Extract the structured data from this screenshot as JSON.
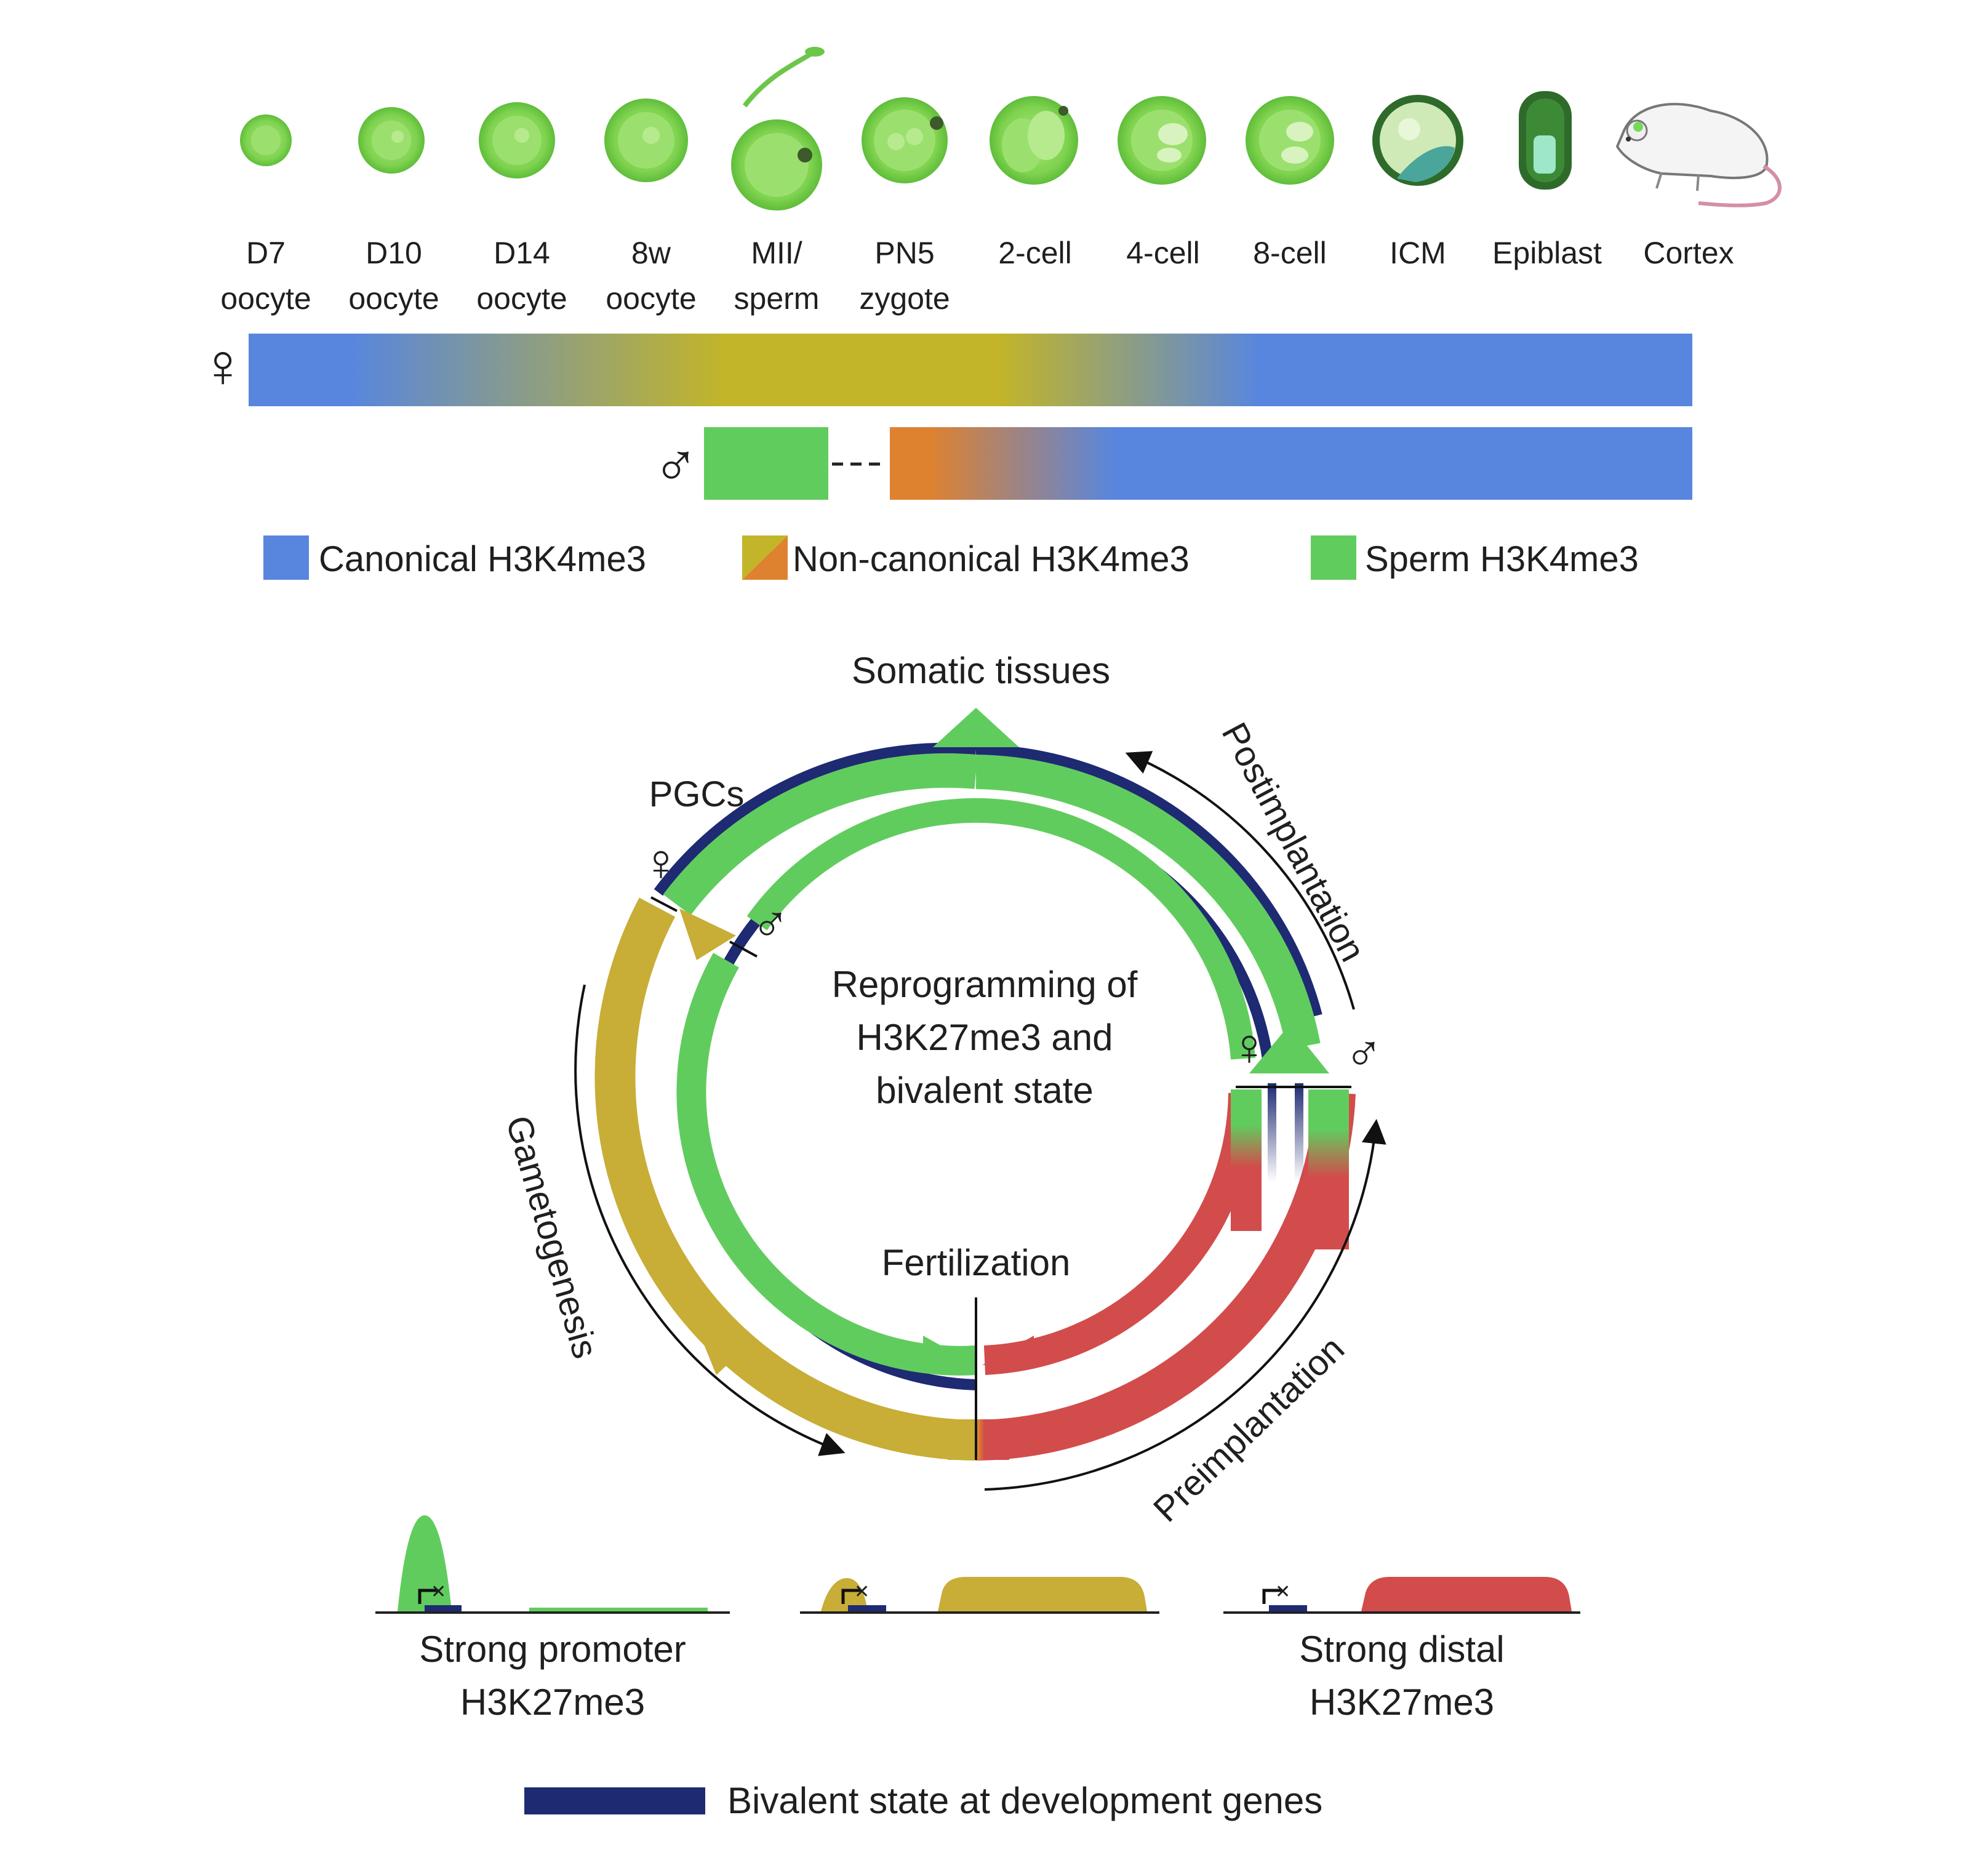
{
  "colors": {
    "canonical": "#5886de",
    "noncanonical_a": "#c2b529",
    "noncanonical_b": "#de8230",
    "sperm": "#61cc5e",
    "gametogenesis": "#c8ad37",
    "preimplantation": "#d24c4b",
    "bivalent": "#1e2a72"
  },
  "stages": [
    {
      "line1": "D7",
      "line2": "oocyte",
      "icon": "oocyte-d7-icon"
    },
    {
      "line1": "D10",
      "line2": "oocyte",
      "icon": "oocyte-d10-icon"
    },
    {
      "line1": "D14",
      "line2": "oocyte",
      "icon": "oocyte-d14-icon"
    },
    {
      "line1": "8w",
      "line2": "oocyte",
      "icon": "oocyte-8w-icon"
    },
    {
      "line1": "MII/",
      "line2": "sperm",
      "icon": "mii-sperm-icon"
    },
    {
      "line1": "PN5",
      "line2": "zygote",
      "icon": "zygote-icon"
    },
    {
      "line1": "2-cell",
      "line2": "",
      "icon": "two-cell-embryo-icon"
    },
    {
      "line1": "4-cell",
      "line2": "",
      "icon": "four-cell-embryo-icon"
    },
    {
      "line1": "8-cell",
      "line2": "",
      "icon": "eight-cell-embryo-icon"
    },
    {
      "line1": "ICM",
      "line2": "",
      "icon": "blastocyst-icon"
    },
    {
      "line1": "Epiblast",
      "line2": "",
      "icon": "epiblast-icon"
    },
    {
      "line1": "Cortex",
      "line2": "",
      "icon": "mouse-icon"
    }
  ],
  "symbols": {
    "female": "♀",
    "male": "♂"
  },
  "legend_top": [
    {
      "label": "Canonical H3K4me3"
    },
    {
      "label": "Non-canonical H3K4me3"
    },
    {
      "label": "Sperm H3K4me3"
    }
  ],
  "cycle": {
    "top": "Somatic tissues",
    "pgcs": "PGCs",
    "center_lines": [
      "Reprogramming of",
      "H3K27me3 and",
      "bivalent state"
    ],
    "fertilization": "Fertilization",
    "postimplantation": "Postimplantation",
    "preimplantation": "Preimplantation",
    "gametogenesis": "Gametogenesis"
  },
  "patterns": {
    "left": [
      "Strong promoter",
      "H3K27me3"
    ],
    "right": [
      "Strong distal",
      "H3K27me3"
    ]
  },
  "legend_bottom": {
    "label": "Bivalent state at development genes"
  }
}
